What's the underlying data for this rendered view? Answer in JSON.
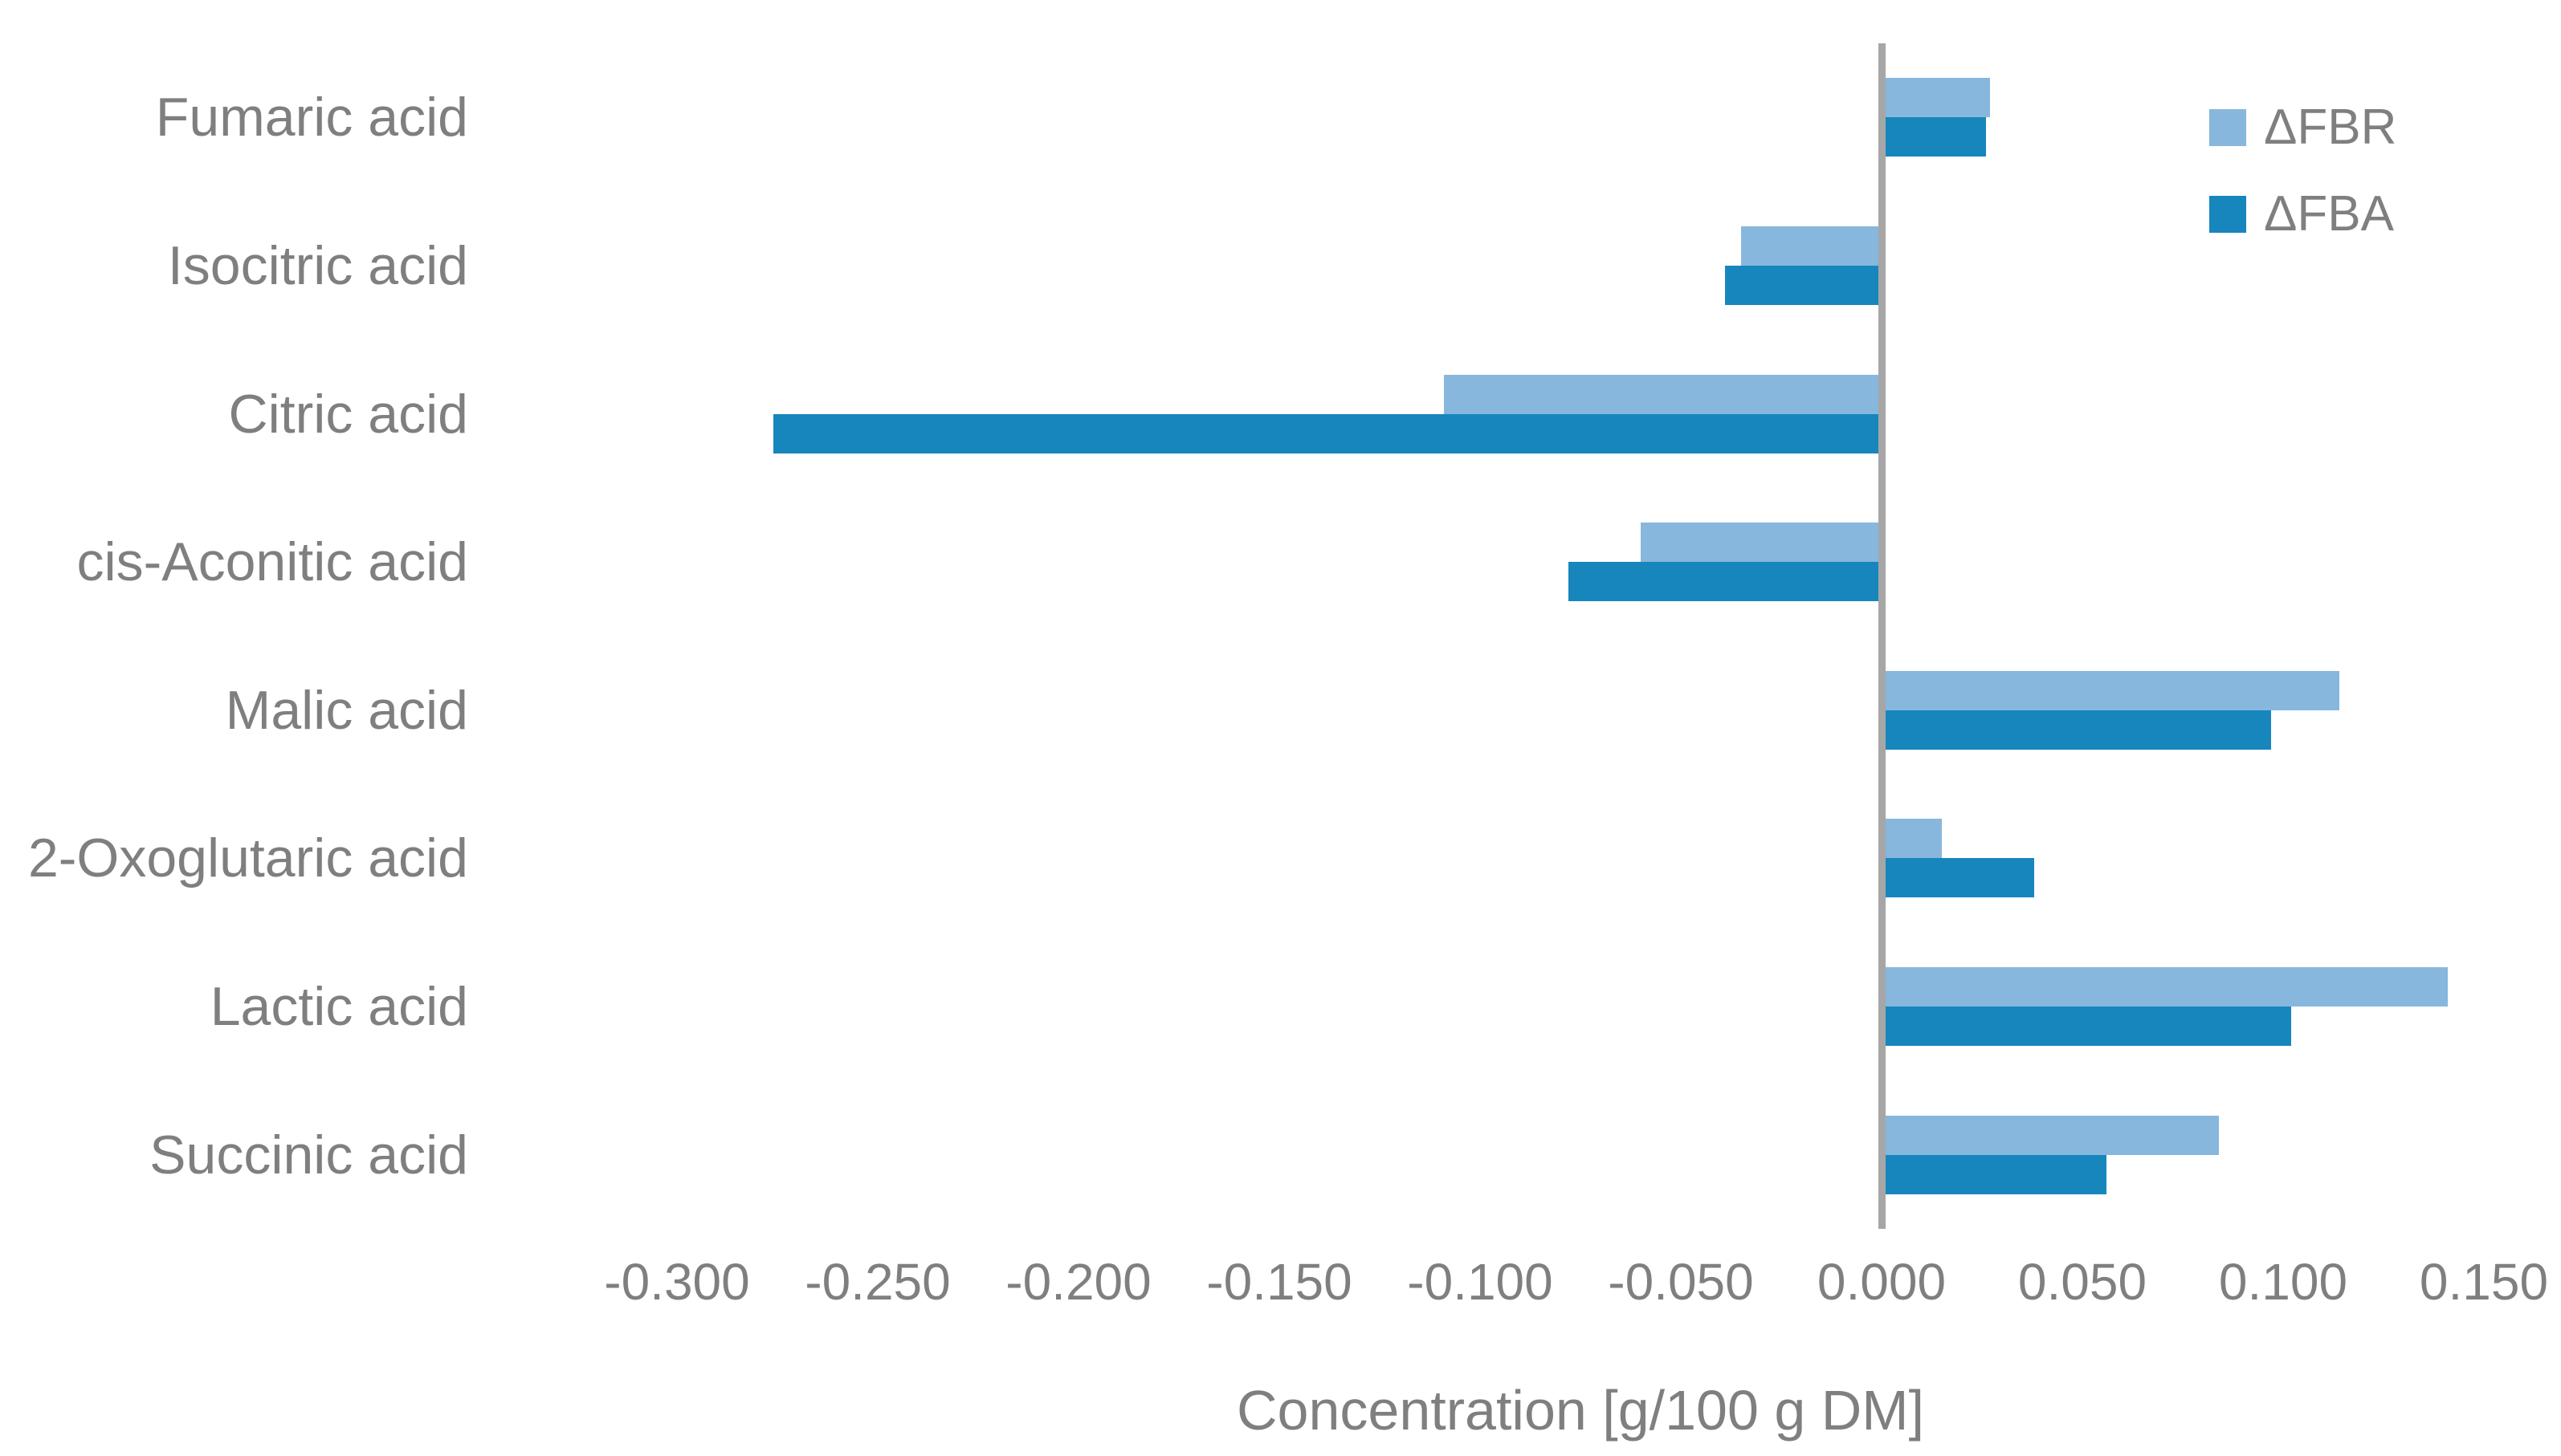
{
  "chart_data": {
    "type": "bar",
    "orientation": "horizontal",
    "title": "",
    "xlabel": "Concentration [g/100 g DM]",
    "ylabel": "",
    "categories": [
      "Fumaric acid",
      "Isocitric acid",
      "Citric acid",
      "cis-Aconitic acid",
      "Malic acid",
      "2-Oxoglutaric acid",
      "Lactic acid",
      "Succinic acid"
    ],
    "series": [
      {
        "name": "ΔFBR",
        "color": "#87B7DD",
        "values": [
          0.027,
          -0.035,
          -0.109,
          -0.06,
          0.114,
          0.015,
          0.141,
          0.084
        ]
      },
      {
        "name": "ΔFBA",
        "color": "#1786BD",
        "values": [
          0.026,
          -0.039,
          -0.276,
          -0.078,
          0.097,
          0.038,
          0.102,
          0.056
        ]
      }
    ],
    "xlim": [
      -0.3,
      0.15
    ],
    "x_ticks": [
      -0.3,
      -0.25,
      -0.2,
      -0.15,
      -0.1,
      -0.05,
      0.0,
      0.05,
      0.1,
      0.15
    ],
    "x_tick_labels": [
      "-0.300",
      "-0.250",
      "-0.200",
      "-0.150",
      "-0.100",
      "-0.050",
      "0.000",
      "0.050",
      "0.100",
      "0.150"
    ],
    "grid": false,
    "legend_position": "top-right"
  },
  "colors": {
    "axis_line": "#A6A6A6",
    "text": "#7F7F7F",
    "background": "#FFFFFF",
    "series_fbr": "#87B7DD",
    "series_fba": "#1786BD"
  }
}
